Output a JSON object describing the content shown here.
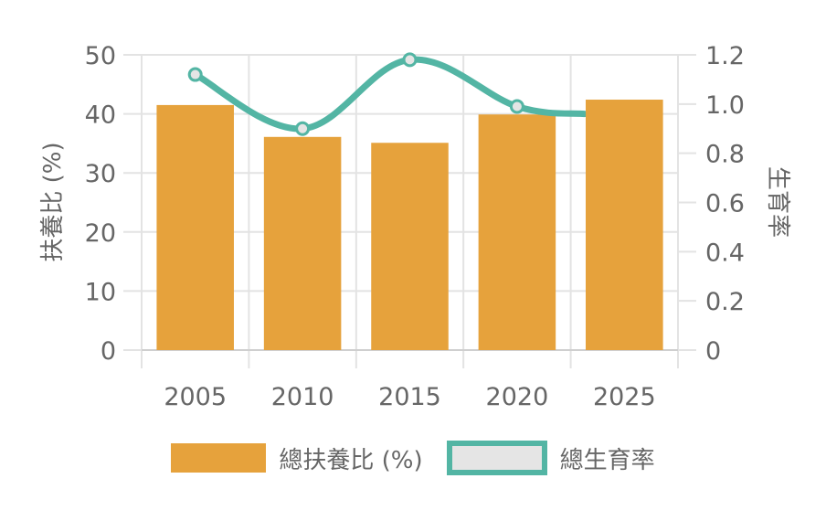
{
  "chart_data": {
    "type": "bar+line",
    "categories": [
      "2005",
      "2010",
      "2015",
      "2020",
      "2025"
    ],
    "series": [
      {
        "name": "總扶養比 (%)",
        "type": "bar",
        "axis": "left",
        "color": "#E6A23C",
        "values": [
          41.5,
          36.1,
          35.1,
          39.9,
          42.4
        ]
      },
      {
        "name": "總生育率",
        "type": "line",
        "axis": "right",
        "color": "#53B5A4",
        "values": [
          1.12,
          0.9,
          1.18,
          0.99,
          0.96
        ]
      }
    ],
    "ylabel": "扶養比 (%)",
    "y2label": "生育率",
    "ylim": [
      0,
      50
    ],
    "y2lim": [
      0,
      1.2
    ],
    "yticks": [
      "0",
      "10",
      "20",
      "30",
      "40",
      "50"
    ],
    "y2ticks": [
      "0",
      "0.2",
      "0.4",
      "0.6",
      "0.8",
      "1.0",
      "1.2"
    ],
    "grid": true,
    "legend_position": "bottom"
  },
  "axis": {
    "left_label": "扶養比 (%)",
    "right_label": "生育率",
    "left_ticks": [
      "0",
      "10",
      "20",
      "30",
      "40",
      "50"
    ],
    "right_ticks": [
      "0",
      "0.2",
      "0.4",
      "0.6",
      "0.8",
      "1.0",
      "1.2"
    ],
    "x_ticks": [
      "2005",
      "2010",
      "2015",
      "2020",
      "2025"
    ]
  },
  "legend": {
    "bar_label": "總扶養比 (%)",
    "line_label": "總生育率"
  }
}
